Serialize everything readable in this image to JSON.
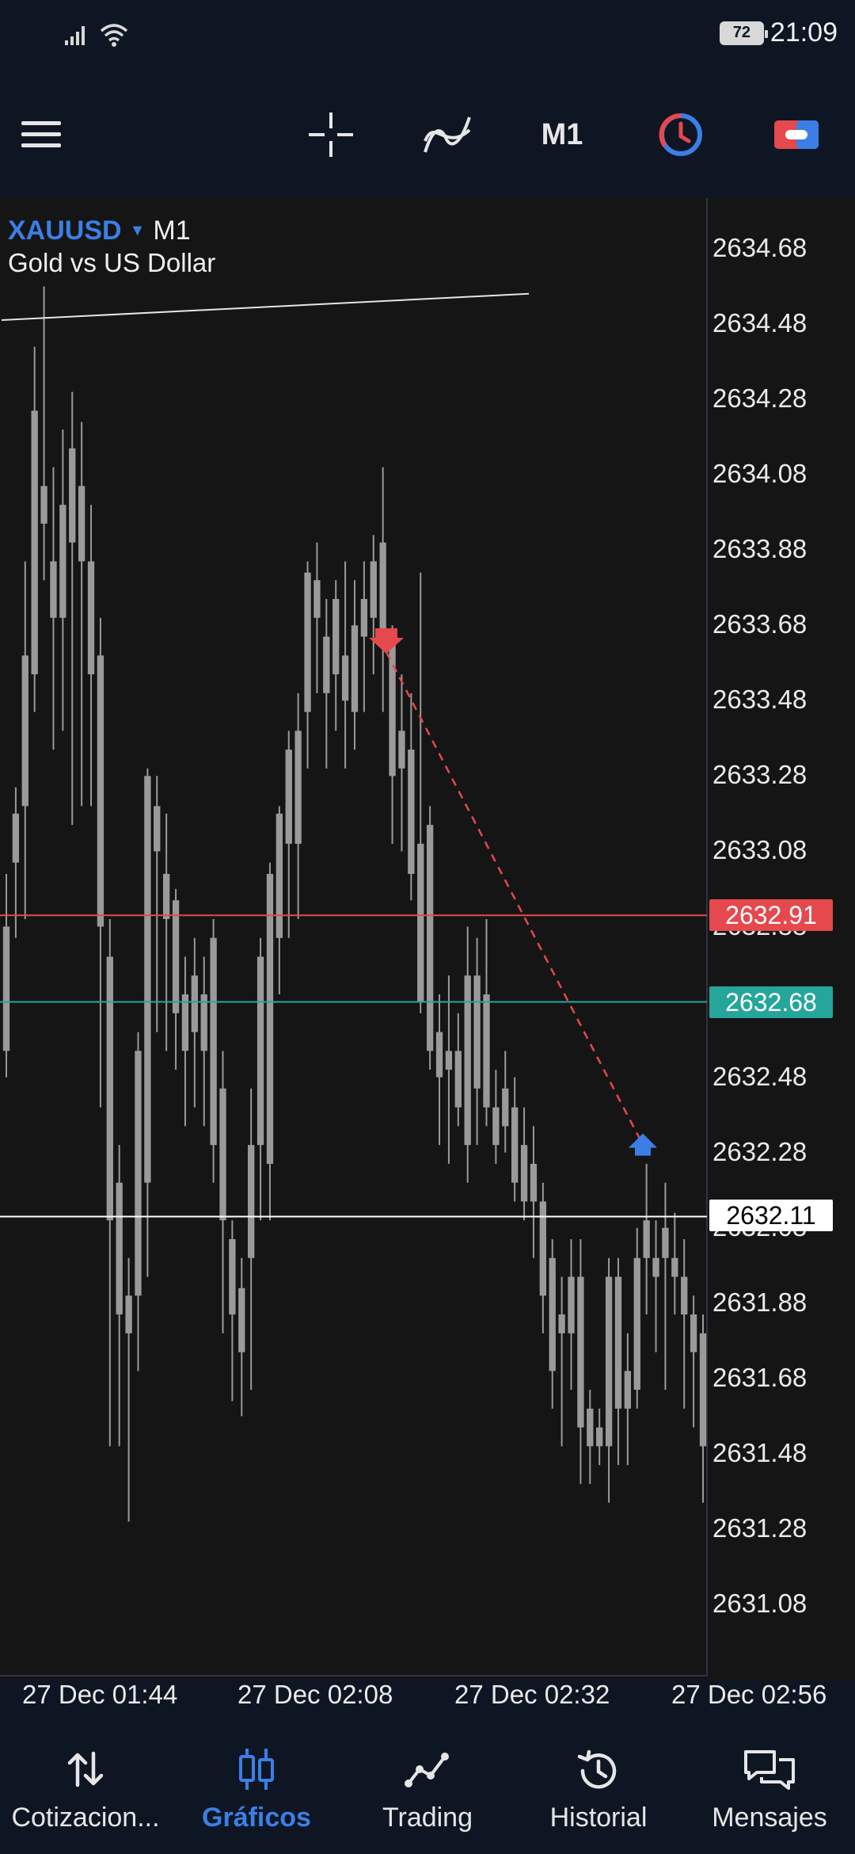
{
  "status_bar": {
    "battery": "72",
    "time": "21:09"
  },
  "toolbar": {
    "menu_icon": "hamburger-icon",
    "crosshair_icon": "crosshair-icon",
    "indicators_icon": "indicators-icon",
    "timeframe": "M1",
    "clock_icon": "one-click-trading-icon",
    "toggle_icon": "chart-toggle-icon"
  },
  "chart": {
    "symbol": "XAUUSD",
    "timeframe": "M1",
    "description": "Gold vs US Dollar",
    "colors": {
      "background": "#151515",
      "candle": "#9a9a9a",
      "sell_line": "#e5484d",
      "buy_line": "#26a69a",
      "bid_line": "#ffffff",
      "trade_line": "#e5484d",
      "buy_arrow": "#3b7fe6"
    }
  },
  "chart_data": {
    "type": "candlestick",
    "ylim": [
      2631.0,
      2634.75
    ],
    "y_ticks": [
      "2634.68",
      "2634.48",
      "2634.28",
      "2634.08",
      "2633.88",
      "2633.68",
      "2633.48",
      "2633.28",
      "2633.08",
      "2632.88",
      "2632.68",
      "2632.48",
      "2632.28",
      "2632.08",
      "2631.88",
      "2631.68",
      "2631.48",
      "2631.28",
      "2631.08"
    ],
    "x_ticks": [
      "27 Dec 01:44",
      "27 Dec 02:08",
      "27 Dec 02:32",
      "27 Dec 02:56"
    ],
    "price_lines": {
      "ask": "2632.91",
      "bid_band": "2632.68",
      "current": "2632.11"
    },
    "trade": {
      "sell_price": 2633.63,
      "close_price": 2632.28
    },
    "trendline": {
      "start_price": 2634.48,
      "end_price": 2634.55
    },
    "candles": [
      [
        2632.88,
        2632.55,
        2632.48,
        2633.02
      ],
      [
        2633.05,
        2633.18,
        2632.85,
        2633.25
      ],
      [
        2633.2,
        2633.6,
        2632.9,
        2633.85
      ],
      [
        2633.55,
        2634.25,
        2633.45,
        2634.42
      ],
      [
        2634.05,
        2633.95,
        2633.8,
        2634.58
      ],
      [
        2633.7,
        2633.85,
        2633.35,
        2634.1
      ],
      [
        2633.7,
        2634.0,
        2633.4,
        2634.2
      ],
      [
        2633.9,
        2634.15,
        2633.15,
        2634.3
      ],
      [
        2634.05,
        2633.85,
        2633.2,
        2634.22
      ],
      [
        2633.55,
        2633.85,
        2633.2,
        2634.0
      ],
      [
        2633.6,
        2632.88,
        2632.4,
        2633.7
      ],
      [
        2632.8,
        2632.1,
        2631.5,
        2632.9
      ],
      [
        2632.2,
        2631.85,
        2631.5,
        2632.3
      ],
      [
        2631.9,
        2631.8,
        2631.3,
        2632.0
      ],
      [
        2631.9,
        2632.55,
        2631.7,
        2632.6
      ],
      [
        2632.2,
        2633.28,
        2631.95,
        2633.3
      ],
      [
        2633.2,
        2633.08,
        2632.6,
        2633.28
      ],
      [
        2632.9,
        2633.02,
        2632.55,
        2633.18
      ],
      [
        2632.95,
        2632.65,
        2632.5,
        2632.98
      ],
      [
        2632.55,
        2632.7,
        2632.35,
        2632.8
      ],
      [
        2632.6,
        2632.75,
        2632.4,
        2632.85
      ],
      [
        2632.7,
        2632.55,
        2632.35,
        2632.8
      ],
      [
        2632.85,
        2632.3,
        2632.2,
        2632.9
      ],
      [
        2632.45,
        2632.1,
        2631.8,
        2632.55
      ],
      [
        2632.05,
        2631.85,
        2631.62,
        2632.1
      ],
      [
        2631.92,
        2631.75,
        2631.58,
        2632.0
      ],
      [
        2632.0,
        2632.3,
        2631.65,
        2632.45
      ],
      [
        2632.8,
        2632.3,
        2632.1,
        2632.85
      ],
      [
        2632.25,
        2633.02,
        2632.1,
        2633.05
      ],
      [
        2632.85,
        2633.18,
        2632.7,
        2633.2
      ],
      [
        2633.1,
        2633.35,
        2632.85,
        2633.4
      ],
      [
        2633.4,
        2633.1,
        2632.9,
        2633.5
      ],
      [
        2633.45,
        2633.82,
        2633.3,
        2633.85
      ],
      [
        2633.7,
        2633.8,
        2633.5,
        2633.9
      ],
      [
        2633.5,
        2633.65,
        2633.3,
        2633.75
      ],
      [
        2633.75,
        2633.55,
        2633.4,
        2633.8
      ],
      [
        2633.6,
        2633.48,
        2633.3,
        2633.85
      ],
      [
        2633.45,
        2633.68,
        2633.35,
        2633.8
      ],
      [
        2633.65,
        2633.75,
        2633.45,
        2633.85
      ],
      [
        2633.85,
        2633.7,
        2633.55,
        2633.92
      ],
      [
        2633.9,
        2633.65,
        2633.45,
        2634.1
      ],
      [
        2633.63,
        2633.28,
        2633.1,
        2633.68
      ],
      [
        2633.3,
        2633.4,
        2633.08,
        2633.55
      ],
      [
        2633.35,
        2633.02,
        2632.95,
        2633.5
      ],
      [
        2633.1,
        2632.68,
        2632.65,
        2633.82
      ],
      [
        2633.15,
        2632.55,
        2632.5,
        2633.2
      ],
      [
        2632.6,
        2632.48,
        2632.3,
        2632.7
      ],
      [
        2632.5,
        2632.55,
        2632.25,
        2632.75
      ],
      [
        2632.55,
        2632.4,
        2632.35,
        2632.65
      ],
      [
        2632.3,
        2632.75,
        2632.2,
        2632.88
      ],
      [
        2632.75,
        2632.45,
        2632.3,
        2632.85
      ],
      [
        2632.7,
        2632.4,
        2632.35,
        2632.9
      ],
      [
        2632.4,
        2632.3,
        2632.25,
        2632.5
      ],
      [
        2632.35,
        2632.45,
        2632.28,
        2632.55
      ],
      [
        2632.4,
        2632.2,
        2632.15,
        2632.48
      ],
      [
        2632.3,
        2632.15,
        2632.1,
        2632.4
      ],
      [
        2632.25,
        2632.15,
        2632.0,
        2632.35
      ],
      [
        2632.15,
        2631.9,
        2631.8,
        2632.2
      ],
      [
        2632.0,
        2631.7,
        2631.6,
        2632.05
      ],
      [
        2631.85,
        2631.8,
        2631.5,
        2631.95
      ],
      [
        2631.8,
        2631.95,
        2631.65,
        2632.05
      ],
      [
        2631.95,
        2631.55,
        2631.4,
        2632.05
      ],
      [
        2631.6,
        2631.5,
        2631.4,
        2631.65
      ],
      [
        2631.5,
        2631.55,
        2631.45,
        2631.6
      ],
      [
        2631.5,
        2631.95,
        2631.35,
        2632.0
      ],
      [
        2631.6,
        2631.95,
        2631.45,
        2632.0
      ],
      [
        2631.7,
        2631.6,
        2631.45,
        2631.8
      ],
      [
        2631.65,
        2632.0,
        2631.6,
        2632.08
      ],
      [
        2632.0,
        2632.1,
        2631.85,
        2632.25
      ],
      [
        2632.0,
        2631.95,
        2631.75,
        2632.1
      ],
      [
        2632.0,
        2632.08,
        2631.65,
        2632.2
      ],
      [
        2632.0,
        2631.95,
        2631.85,
        2632.12
      ],
      [
        2631.95,
        2631.85,
        2631.6,
        2632.05
      ],
      [
        2631.85,
        2631.75,
        2631.55,
        2631.9
      ],
      [
        2631.8,
        2631.5,
        2631.35,
        2631.85
      ]
    ]
  },
  "bottom_nav": {
    "items": [
      {
        "label": "Cotizacion...",
        "icon": "arrows-up-down-icon"
      },
      {
        "label": "Gráficos",
        "icon": "candlestick-icon"
      },
      {
        "label": "Trading",
        "icon": "trend-line-icon"
      },
      {
        "label": "Historial",
        "icon": "history-icon"
      },
      {
        "label": "Mensajes",
        "icon": "messages-icon"
      }
    ]
  }
}
